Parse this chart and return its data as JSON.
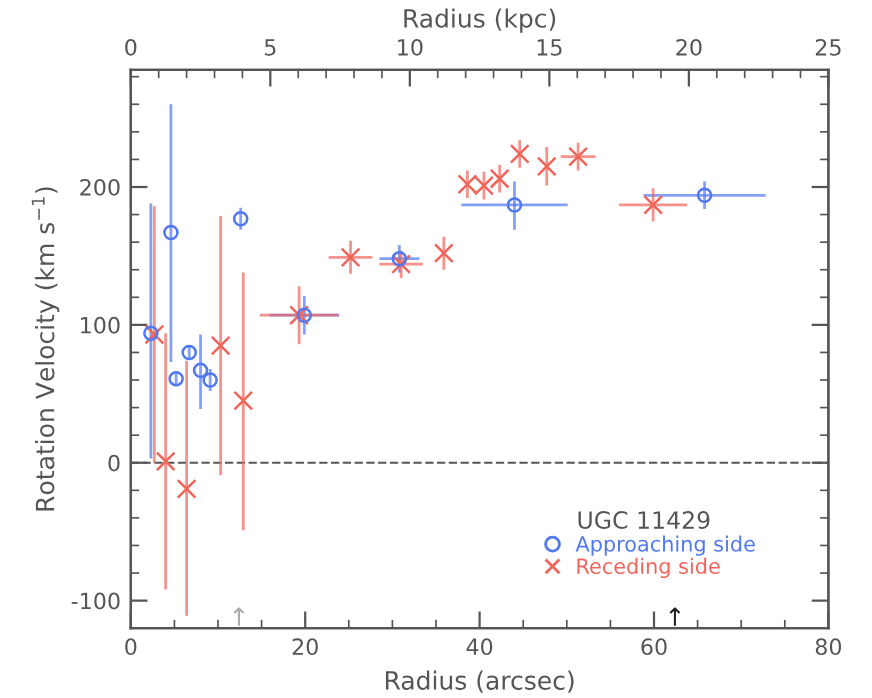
{
  "chart_data": {
    "type": "scatter",
    "xlabel": "Radius (arcsec)",
    "ylabel": "Rotation Velocity (km s$^{−1}$)",
    "x2label": "Radius (kpc)",
    "legend_title": "UGC 11429",
    "xlim": [
      0,
      80
    ],
    "xticks": [
      0,
      20,
      40,
      60,
      80
    ],
    "ylim": [
      -120,
      285
    ],
    "yticks": [
      -100,
      0,
      100,
      200
    ],
    "x2lim": [
      0,
      25
    ],
    "x2ticks": [
      0,
      5,
      10,
      15,
      20,
      25
    ],
    "legend": "bottom right",
    "grid": false,
    "ref_lines": [
      {
        "axis": "y",
        "value": 0,
        "label": null,
        "color": "#555555",
        "line_style": "dashed"
      }
    ],
    "annotations": [
      "↑",
      "↑"
    ],
    "series": [
      {
        "name": "Approaching side",
        "color": "#5078f0",
        "marker": "circle",
        "x": [
          2.3,
          4.6,
          5.2,
          6.7,
          8.0,
          9.1,
          12.6,
          19.9,
          30.8,
          44.0,
          65.8
        ],
        "values": [
          94,
          167,
          61,
          80,
          67,
          60,
          177,
          107,
          148,
          187,
          194
        ],
        "errors": [
          [
            3,
            188
          ],
          [
            73,
            260
          ],
          5,
          5,
          [
            39,
            93
          ],
          8,
          8,
          14,
          10,
          [
            169,
            204
          ],
          10
        ],
        "xerrors": [
          null,
          null,
          null,
          null,
          null,
          null,
          null,
          4,
          2.3,
          6.1,
          7
        ]
      },
      {
        "name": "Receding side",
        "color": "#f0645a",
        "marker": "cross",
        "x": [
          2.7,
          4.0,
          6.4,
          10.3,
          12.9,
          19.3,
          25.2,
          31.0,
          35.9,
          38.6,
          40.5,
          42.3,
          44.6,
          47.7,
          51.3,
          59.9
        ],
        "values": [
          93,
          1,
          -19,
          85,
          45,
          107,
          149,
          144,
          152,
          202,
          201,
          206,
          224,
          215,
          222,
          187
        ],
        "errors": [
          [
            0,
            186
          ],
          [
            -92,
            94
          ],
          [
            -111,
            74
          ],
          [
            -9,
            179
          ],
          [
            -49,
            138
          ],
          21,
          12,
          10,
          12,
          10,
          10,
          10,
          10,
          14,
          10,
          12
        ],
        "xerrors": [
          null,
          null,
          null,
          null,
          null,
          4.5,
          2.5,
          2.5,
          null,
          null,
          null,
          null,
          null,
          null,
          2,
          3.9
        ]
      }
    ]
  }
}
